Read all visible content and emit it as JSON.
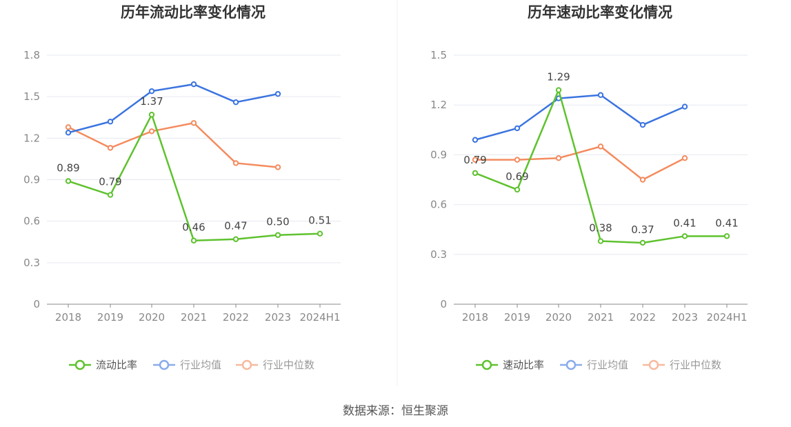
{
  "colors": {
    "current": "#5ec22e",
    "avg": "#3b74e0",
    "median": "#f48b5e",
    "grid": "#e6e8f0",
    "axis": "#888888"
  },
  "source": "数据来源：恒生聚源",
  "chart_data": [
    {
      "type": "line",
      "title": "历年流动比率变化情况",
      "categories": [
        "2018",
        "2019",
        "2020",
        "2021",
        "2022",
        "2023",
        "2024H1"
      ],
      "ylim": [
        0,
        1.8
      ],
      "yticks": [
        "0",
        "0.3",
        "0.6",
        "0.9",
        "1.2",
        "1.5",
        "1.8"
      ],
      "series": [
        {
          "name": "流动比率",
          "values": [
            0.89,
            0.79,
            1.37,
            0.46,
            0.47,
            0.5,
            0.51
          ],
          "labels": [
            "0.89",
            "0.79",
            "1.37",
            "0.46",
            "0.47",
            "0.50",
            "0.51"
          ]
        },
        {
          "name": "行业均值",
          "values": [
            1.24,
            1.32,
            1.54,
            1.59,
            1.46,
            1.52,
            null
          ]
        },
        {
          "name": "行业中位数",
          "values": [
            1.28,
            1.13,
            1.25,
            1.31,
            1.02,
            0.99,
            null
          ]
        }
      ],
      "legend_position": "bottom"
    },
    {
      "type": "line",
      "title": "历年速动比率变化情况",
      "categories": [
        "2018",
        "2019",
        "2020",
        "2021",
        "2022",
        "2023",
        "2024H1"
      ],
      "ylim": [
        0,
        1.5
      ],
      "yticks": [
        "0",
        "0.3",
        "0.6",
        "0.9",
        "1.2",
        "1.5"
      ],
      "series": [
        {
          "name": "速动比率",
          "values": [
            0.79,
            0.69,
            1.29,
            0.38,
            0.37,
            0.41,
            0.41
          ],
          "labels": [
            "0.79",
            "0.69",
            "1.29",
            "0.38",
            "0.37",
            "0.41",
            "0.41"
          ]
        },
        {
          "name": "行业均值",
          "values": [
            0.99,
            1.06,
            1.24,
            1.26,
            1.08,
            1.19,
            null
          ]
        },
        {
          "name": "行业中位数",
          "values": [
            0.87,
            0.87,
            0.88,
            0.95,
            0.75,
            0.88,
            null
          ]
        }
      ],
      "legend_position": "bottom"
    }
  ]
}
